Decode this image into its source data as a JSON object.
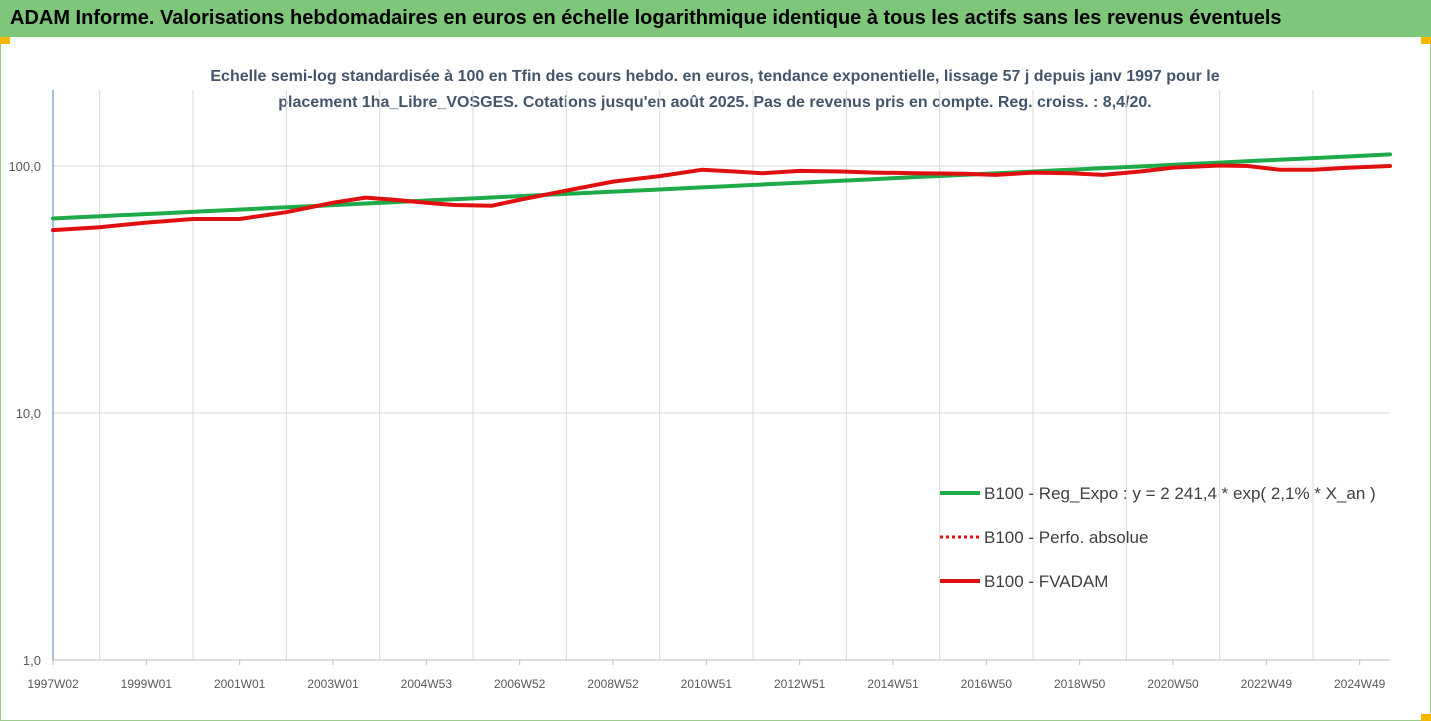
{
  "header": {
    "title": "ADAM Informe. Valorisations hebdomadaires en euros en échelle logarithmique identique à tous les actifs sans les revenus éventuels"
  },
  "chart_data": {
    "type": "line",
    "title_line1": "Echelle semi-log standardisée à 100 en Tfin des cours hebdo. en euros, tendance exponentielle, lissage 57 j depuis janv 1997 pour le",
    "title_line2": "placement 1ha_Libre_VOSGES. Cotations jusqu'en août 2025. Pas de revenus pris en compte. Reg. croiss. : 8,4/20.",
    "y_scale": "log",
    "ylim": [
      1,
      200
    ],
    "xlim": [
      1997.0,
      2025.65
    ],
    "y_ticks": [
      {
        "value": 1,
        "label": "1,0"
      },
      {
        "value": 10,
        "label": "10,0"
      },
      {
        "value": 100,
        "label": "100,0"
      }
    ],
    "x_ticks": [
      {
        "value": 1997.0,
        "label": "1997W02"
      },
      {
        "value": 1999.0,
        "label": "1999W01"
      },
      {
        "value": 2001.0,
        "label": "2001W01"
      },
      {
        "value": 2003.0,
        "label": "2003W01"
      },
      {
        "value": 2005.0,
        "label": "2004W53"
      },
      {
        "value": 2007.0,
        "label": "2006W52"
      },
      {
        "value": 2009.0,
        "label": "2008W52"
      },
      {
        "value": 2011.0,
        "label": "2010W51"
      },
      {
        "value": 2013.0,
        "label": "2012W51"
      },
      {
        "value": 2015.0,
        "label": "2014W51"
      },
      {
        "value": 2017.0,
        "label": "2016W50"
      },
      {
        "value": 2019.0,
        "label": "2018W50"
      },
      {
        "value": 2021.0,
        "label": "2020W50"
      },
      {
        "value": 2023.0,
        "label": "2022W49"
      },
      {
        "value": 2025.0,
        "label": "2024W49"
      }
    ],
    "grid": "vertical",
    "legend_position": "right",
    "series": [
      {
        "name": "B100 - Reg_Expo : y = 2 241,4 * exp( 2,1% *  X_an )",
        "color": "#1faa4a",
        "style": "solid",
        "x": [
          1997.0,
          2025.65
        ],
        "y": [
          61.3,
          111.4
        ]
      },
      {
        "name": "B100 - Perfo. absolue",
        "color": "#e01010",
        "style": "dotted",
        "x": [],
        "y": []
      },
      {
        "name": "B100 - FVADAM",
        "color": "#e01010",
        "style": "solid",
        "x": [
          1997.0,
          1998.0,
          1999.0,
          2000.0,
          2001.0,
          2002.0,
          2003.0,
          2003.7,
          2004.3,
          2005.0,
          2005.6,
          2006.4,
          2007.0,
          2008.0,
          2009.0,
          2010.0,
          2010.9,
          2011.6,
          2012.2,
          2013.0,
          2013.9,
          2014.6,
          2015.5,
          2016.5,
          2017.2,
          2018.0,
          2018.8,
          2019.5,
          2020.3,
          2021.0,
          2022.0,
          2022.6,
          2023.3,
          2024.0,
          2024.8,
          2025.65
        ],
        "y": [
          55,
          56.5,
          59,
          61,
          61,
          65,
          71,
          74.5,
          73,
          71,
          69.5,
          69,
          73,
          79.5,
          86.5,
          91,
          96.5,
          95,
          93.5,
          95.5,
          95,
          94,
          93.5,
          93,
          92,
          94,
          93.5,
          92,
          95,
          98.5,
          100.5,
          100,
          96.5,
          96.5,
          98.5,
          100
        ]
      }
    ]
  }
}
